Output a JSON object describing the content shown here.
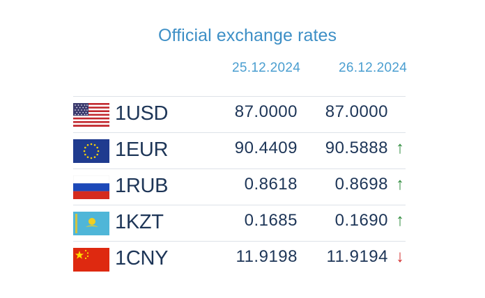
{
  "title": "Official exchange rates",
  "dates": [
    "25.12.2024",
    "26.12.2024"
  ],
  "rates": [
    {
      "code": "1USD",
      "flag": "us-flag",
      "prev": "87.0000",
      "curr": "87.0000",
      "trend": "none"
    },
    {
      "code": "1EUR",
      "flag": "eu-flag",
      "prev": "90.4409",
      "curr": "90.5888",
      "trend": "up"
    },
    {
      "code": "1RUB",
      "flag": "ru-flag",
      "prev": "0.8618",
      "curr": "0.8698",
      "trend": "up"
    },
    {
      "code": "1KZT",
      "flag": "kz-flag",
      "prev": "0.1685",
      "curr": "0.1690",
      "trend": "up"
    },
    {
      "code": "1CNY",
      "flag": "cn-flag",
      "prev": "11.9198",
      "curr": "11.9194",
      "trend": "down"
    }
  ],
  "trend_symbols": {
    "up": "↑",
    "down": "↓",
    "none": ""
  },
  "colors": {
    "title": "#3d8fc6",
    "text": "#1d3557",
    "up": "#2e8b3c",
    "down": "#d22b2b",
    "divider": "#dde2e8"
  }
}
